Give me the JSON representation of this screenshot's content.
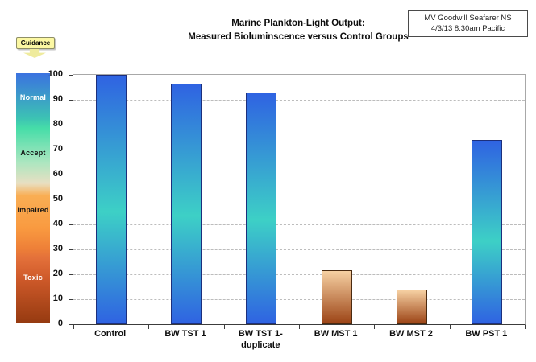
{
  "guidance": {
    "label": "Guidance"
  },
  "title": {
    "line1": "Marine Plankton-Light Output:",
    "line2": "Measured Bioluminscence versus Control Groups"
  },
  "info_box": {
    "line1": "MV Goodwill Seafarer NS",
    "line2": "4/3/13 8:30am Pacific"
  },
  "guidance_scale": {
    "zones": [
      {
        "label": "Normal",
        "text_color": "#ffffff",
        "at_value": 90
      },
      {
        "label": "Accept",
        "text_color": "#141414",
        "at_value": 68
      },
      {
        "label": "Impaired",
        "text_color": "#141414",
        "at_value": 45
      },
      {
        "label": "Toxic",
        "text_color": "#ffffff",
        "at_value": 18
      }
    ],
    "gradient_stops": [
      {
        "pos": 0,
        "color": "#3b72e0"
      },
      {
        "pos": 18,
        "color": "#3cc2b4"
      },
      {
        "pos": 22,
        "color": "#46dda8"
      },
      {
        "pos": 36,
        "color": "#aee6c0"
      },
      {
        "pos": 44,
        "color": "#e8dfc2"
      },
      {
        "pos": 49,
        "color": "#f9ae54"
      },
      {
        "pos": 62,
        "color": "#f99a40"
      },
      {
        "pos": 70,
        "color": "#ee8038"
      },
      {
        "pos": 74,
        "color": "#e3703a"
      },
      {
        "pos": 82,
        "color": "#cf5a2a"
      },
      {
        "pos": 100,
        "color": "#953a10"
      }
    ]
  },
  "chart_data": {
    "type": "bar",
    "title": "Marine Plankton-Light Output: Measured Bioluminscence versus Control Groups",
    "categories": [
      "Control",
      "BW TST 1",
      "BW TST 1-duplicate",
      "BW MST 1",
      "BW MST 2",
      "BW PST 1"
    ],
    "values": [
      100,
      96.5,
      93,
      21.5,
      14,
      74
    ],
    "tick_label_lines": [
      [
        "Control"
      ],
      [
        "BW TST 1"
      ],
      [
        "BW TST 1-",
        "duplicate"
      ],
      [
        "BW MST 1"
      ],
      [
        "BW MST 2"
      ],
      [
        "BW PST 1"
      ]
    ],
    "ylim": [
      0,
      100
    ],
    "ytick_interval": 10,
    "grid": "horizontal-dashed",
    "legend": "none",
    "bar_style_by_index": [
      "normal",
      "normal",
      "normal",
      "toxic",
      "toxic",
      "normal"
    ],
    "bar_styles": {
      "normal": {
        "top": "#2f63e2",
        "mid": "#3dd0c6",
        "bottom": "#2f63e2",
        "border": "#1c2f7c"
      },
      "toxic": {
        "top": "#f6d0a2",
        "bottom": "#9c4416",
        "border": "#4a2a10"
      }
    }
  }
}
